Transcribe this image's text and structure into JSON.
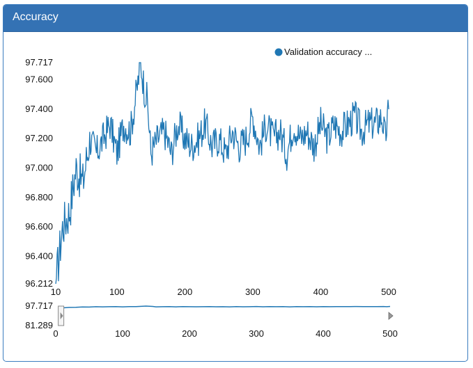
{
  "panel": {
    "title": "Accuracy"
  },
  "chart_data": {
    "type": "line",
    "title": "Accuracy",
    "xlabel": "",
    "ylabel": "",
    "xlim": [
      10,
      500
    ],
    "ylim": [
      96.212,
      97.717
    ],
    "x_ticks": [
      10,
      100,
      200,
      300,
      400,
      500
    ],
    "y_ticks": [
      96.212,
      96.4,
      96.6,
      96.8,
      97.0,
      97.2,
      97.4,
      97.6,
      97.717
    ],
    "y_tick_labels": [
      "96.212",
      "96.400",
      "96.600",
      "96.800",
      "97.000",
      "97.200",
      "97.400",
      "97.600",
      "97.717"
    ],
    "legend": {
      "position": "top-right"
    },
    "color": "#1f77b4",
    "series": [
      {
        "name": "Validation accuracy ...",
        "x": [
          10,
          20,
          30,
          40,
          50,
          60,
          70,
          80,
          90,
          100,
          110,
          120,
          130,
          135,
          140,
          145,
          150,
          160,
          170,
          180,
          190,
          200,
          210,
          220,
          230,
          240,
          250,
          260,
          270,
          280,
          290,
          300,
          310,
          320,
          330,
          340,
          350,
          360,
          370,
          380,
          390,
          400,
          410,
          420,
          430,
          440,
          450,
          460,
          470,
          480,
          490,
          495,
          500
        ],
        "values": [
          96.212,
          96.6,
          96.7,
          97.0,
          96.9,
          97.2,
          97.1,
          97.2,
          97.3,
          97.1,
          97.3,
          97.25,
          97.55,
          97.717,
          97.55,
          97.45,
          97.1,
          97.2,
          97.25,
          97.1,
          97.3,
          97.2,
          97.15,
          97.2,
          97.3,
          97.15,
          97.2,
          97.1,
          97.25,
          97.15,
          97.2,
          97.35,
          97.15,
          97.3,
          97.2,
          97.25,
          97.1,
          97.3,
          97.2,
          97.25,
          97.15,
          97.3,
          97.2,
          97.3,
          97.25,
          97.3,
          97.35,
          97.25,
          97.3,
          97.3,
          97.35,
          97.2,
          97.4
        ]
      }
    ],
    "navigator": {
      "ylim": [
        81.289,
        97.717
      ],
      "y_tick_labels": [
        "97.717",
        "81.289"
      ],
      "xlim": [
        0,
        500
      ],
      "x_ticks": [
        0,
        100,
        200,
        300,
        400,
        500
      ],
      "selection": [
        10,
        500
      ]
    }
  }
}
